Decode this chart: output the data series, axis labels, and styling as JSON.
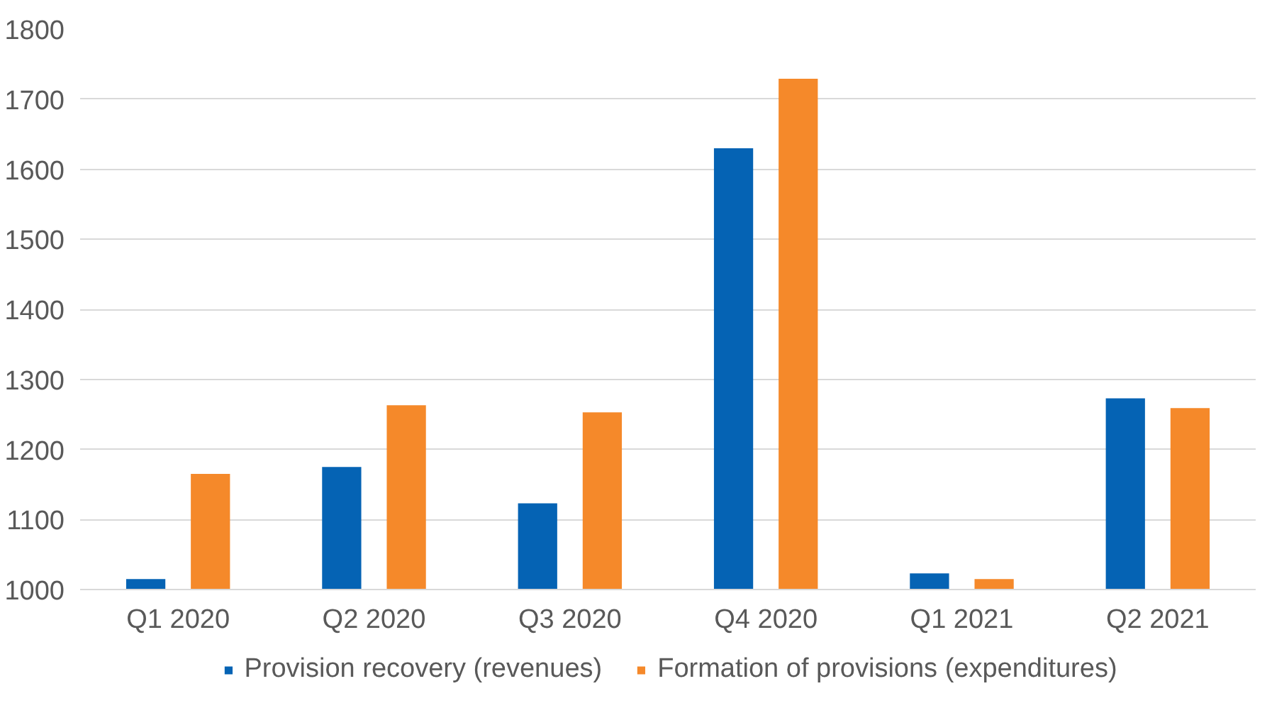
{
  "chart_data": {
    "type": "bar",
    "categories": [
      "Q1 2020",
      "Q2 2020",
      "Q3 2020",
      "Q4 2020",
      "Q1 2021",
      "Q2 2021"
    ],
    "series": [
      {
        "name": "Provision recovery (revenues)",
        "color": "#0563b4",
        "values": [
          1015,
          1175,
          1123,
          1630,
          1023,
          1273
        ]
      },
      {
        "name": "Formation of provisions (expenditures)",
        "color": "#f5892a",
        "values": [
          1165,
          1263,
          1253,
          1729,
          1015,
          1259
        ]
      }
    ],
    "ylim": [
      1000,
      1800
    ],
    "yticks": [
      1000,
      1100,
      1200,
      1300,
      1400,
      1500,
      1600,
      1700,
      1800
    ],
    "grid": "y",
    "legend": "bottom"
  }
}
